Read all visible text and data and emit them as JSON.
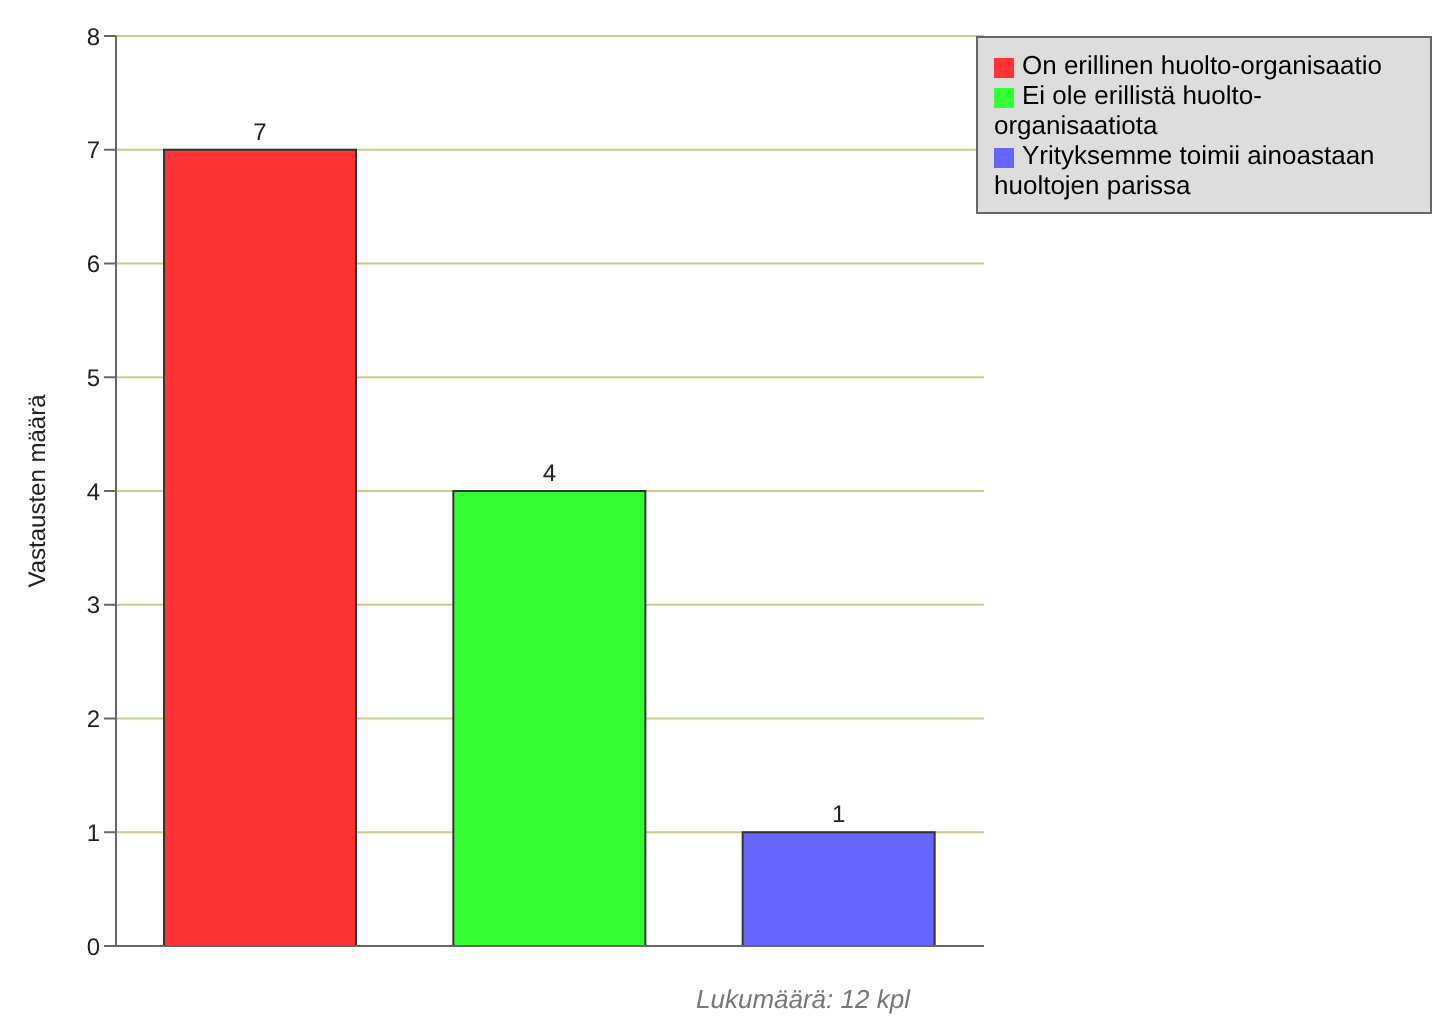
{
  "chart_data": {
    "type": "bar",
    "categories": [
      null,
      null,
      null
    ],
    "series": [
      {
        "name": "On erillinen huolto-organisaatio",
        "color": "#ff3333",
        "values": [
          7,
          null,
          null
        ]
      },
      {
        "name": "Ei ole erillistä huolto-organisaatiota",
        "color": "#33ff33",
        "values": [
          null,
          4,
          null
        ]
      },
      {
        "name": "Yrityksemme toimii ainoastaan huoltojen parissa",
        "color": "#6666ff",
        "values": [
          null,
          null,
          1
        ]
      }
    ],
    "stacked": true,
    "ylabel": "Vastausten määrä",
    "ylim": [
      0,
      8
    ],
    "yticks": [
      0,
      1,
      2,
      3,
      4,
      5,
      6,
      7,
      8
    ],
    "grid": "y",
    "legend": "top right",
    "tick_labels": "y",
    "data_labels": true,
    "annotations": [
      "Lukumäärä: 12 kpl"
    ]
  }
}
